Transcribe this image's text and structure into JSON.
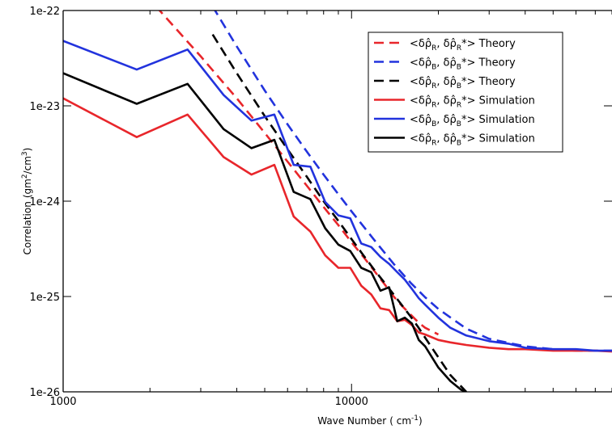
{
  "chart_data": {
    "type": "line",
    "title": "",
    "xlabel": "Wave Number",
    "xlabel_unit": "( cm",
    "xlabel_unit_sup": "-1",
    "xlabel_unit_close": ")",
    "ylabel": "Correlation",
    "ylabel_unit_open": "(gm",
    "ylabel_unit_sup1": "2",
    "ylabel_unit_mid": "/cm",
    "ylabel_unit_sup2": "3",
    "ylabel_unit_close": ")",
    "xscale": "log",
    "yscale": "log",
    "xlim": [
      1000,
      80000
    ],
    "ylim": [
      1e-26,
      1e-22
    ],
    "xticks": [
      {
        "value": 1000,
        "label": "1000"
      },
      {
        "value": 10000,
        "label": "10000"
      }
    ],
    "yticks": [
      {
        "value": 1e-22,
        "label": "1e-22"
      },
      {
        "value": 1e-23,
        "label": "1e-23"
      },
      {
        "value": 1e-24,
        "label": "1e-24"
      },
      {
        "value": 1e-25,
        "label": "1e-25"
      },
      {
        "value": 1e-26,
        "label": "1e-26"
      }
    ],
    "grid": false,
    "legend_position": "top-right",
    "series": [
      {
        "name": "<δρ̂R, δρ̂R*> Theory",
        "legend": {
          "pre": "<δρ̂",
          "sub1": "R",
          "mid": ", δρ̂",
          "sub2": "R",
          "post": "*> Theory"
        },
        "color": "#e8262b",
        "dash": true,
        "x": [
          2100,
          3000,
          4000,
          5000,
          6000,
          7000,
          8000,
          9000,
          10000,
          11000,
          12000,
          13000,
          14000,
          15000,
          16000,
          17000,
          18000,
          20000
        ],
        "y": [
          1.1e-22,
          3.3e-23,
          1.2e-23,
          5.2e-24,
          2.6e-24,
          1.45e-24,
          8.7e-25,
          5.6e-25,
          3.7e-25,
          2.6e-25,
          1.85e-25,
          1.35e-25,
          1e-25,
          7.9e-26,
          6.5e-26,
          5.4e-26,
          4.7e-26,
          4e-26
        ]
      },
      {
        "name": "<δρ̂B, δρ̂B*> Theory",
        "legend": {
          "pre": "<δρ̂",
          "sub1": "B",
          "mid": ", δρ̂",
          "sub2": "B",
          "post": "*> Theory"
        },
        "color": "#2233dd",
        "dash": true,
        "x": [
          3300,
          4000,
          5000,
          6000,
          7000,
          8000,
          9000,
          10000,
          12000,
          14000,
          16000,
          18000,
          20000,
          25000,
          30000,
          40000,
          50000,
          60000,
          80000
        ],
        "y": [
          1.1e-22,
          4.2e-23,
          1.45e-23,
          6.4e-24,
          3.3e-24,
          1.9e-24,
          1.18e-24,
          7.8e-25,
          3.9e-25,
          2.2e-25,
          1.4e-25,
          9.8e-26,
          7.4e-26,
          4.6e-26,
          3.6e-26,
          3e-26,
          2.8e-26,
          2.7e-26,
          2.7e-26
        ]
      },
      {
        "name": "<δρ̂R, δρ̂B*> Theory",
        "legend": {
          "pre": "<δρ̂",
          "sub1": "R",
          "mid": ", δρ̂",
          "sub2": "B",
          "post": "*> Theory"
        },
        "color": "#000000",
        "dash": true,
        "x": [
          3300,
          4000,
          5000,
          6000,
          7000,
          8000,
          9000,
          10000,
          11000,
          12000,
          13000,
          14000,
          15000,
          16000,
          17000,
          18000,
          20000,
          22000,
          25000
        ],
        "y": [
          5.6e-23,
          2.2e-23,
          7.8e-24,
          3.5e-24,
          1.8e-24,
          1e-24,
          6.2e-25,
          4e-25,
          2.7e-25,
          1.9e-25,
          1.4e-25,
          1.05e-25,
          8e-26,
          6.2e-26,
          4.8e-26,
          3.7e-26,
          2.3e-26,
          1.5e-26,
          1e-26
        ]
      },
      {
        "name": "<δρ̂R, δρ̂R*> Simulation",
        "legend": {
          "pre": "<δρ̂",
          "sub1": "R",
          "mid": ", δρ̂",
          "sub2": "R",
          "post": "*> Simulation"
        },
        "color": "#e8262b",
        "dash": false,
        "x": [
          1000,
          1800,
          2700,
          3600,
          4500,
          5400,
          6300,
          7200,
          8100,
          9000,
          9900,
          10800,
          11700,
          12600,
          13500,
          14400,
          15300,
          16200,
          17100,
          18000,
          20000,
          22000,
          25000,
          30000,
          35000,
          40000,
          50000,
          60000,
          70000,
          80000
        ],
        "y": [
          1.2e-23,
          4.7e-24,
          8.1e-24,
          2.9e-24,
          1.9e-24,
          2.4e-24,
          6.9e-25,
          4.8e-25,
          2.7e-25,
          2e-25,
          2e-25,
          1.3e-25,
          1.05e-25,
          7.5e-26,
          7.2e-26,
          5.5e-26,
          5.7e-26,
          5e-26,
          4.2e-26,
          4e-26,
          3.5e-26,
          3.3e-26,
          3.1e-26,
          2.9e-26,
          2.8e-26,
          2.8e-26,
          2.7e-26,
          2.7e-26,
          2.7e-26,
          2.65e-26
        ]
      },
      {
        "name": "<δρ̂B, δρ̂B*> Simulation",
        "legend": {
          "pre": "<δρ̂",
          "sub1": "B",
          "mid": ", δρ̂",
          "sub2": "B",
          "post": "*> Simulation"
        },
        "color": "#2233dd",
        "dash": false,
        "x": [
          1000,
          1800,
          2700,
          3600,
          4500,
          5400,
          6300,
          7200,
          8100,
          9000,
          9900,
          10800,
          11700,
          12600,
          13500,
          14400,
          15300,
          16200,
          17100,
          18000,
          20000,
          22000,
          25000,
          30000,
          35000,
          40000,
          50000,
          60000,
          70000,
          80000
        ],
        "y": [
          4.8e-23,
          2.4e-23,
          3.9e-23,
          1.3e-23,
          7e-24,
          8.1e-24,
          2.4e-24,
          2.3e-24,
          9.8e-25,
          7.1e-25,
          6.6e-25,
          3.6e-25,
          3.3e-25,
          2.6e-25,
          2.2e-25,
          1.8e-25,
          1.5e-25,
          1.2e-25,
          9.6e-26,
          8.2e-26,
          6e-26,
          4.7e-26,
          3.9e-26,
          3.4e-26,
          3.2e-26,
          2.9e-26,
          2.8e-26,
          2.8e-26,
          2.7e-26,
          2.7e-26
        ]
      },
      {
        "name": "<δρ̂R, δρ̂B*> Simulation",
        "legend": {
          "pre": "<δρ̂",
          "sub1": "R",
          "mid": ", δρ̂",
          "sub2": "B",
          "post": "*> Simulation"
        },
        "color": "#000000",
        "dash": false,
        "x": [
          1000,
          1800,
          2700,
          3600,
          4500,
          5400,
          6300,
          7200,
          8100,
          9000,
          9900,
          10800,
          11700,
          12600,
          13500,
          14400,
          15300,
          16200,
          17100,
          18000,
          20000,
          22000,
          24000,
          25000
        ],
        "y": [
          2.2e-23,
          1.05e-23,
          1.7e-23,
          5.7e-24,
          3.6e-24,
          4.4e-24,
          1.25e-24,
          1.05e-24,
          5.2e-25,
          3.5e-25,
          3e-25,
          2e-25,
          1.8e-25,
          1.15e-25,
          1.25e-25,
          5.5e-26,
          6e-26,
          5.2e-26,
          3.5e-26,
          3e-26,
          1.8e-26,
          1.3e-26,
          1.05e-26,
          1e-26
        ]
      }
    ]
  }
}
